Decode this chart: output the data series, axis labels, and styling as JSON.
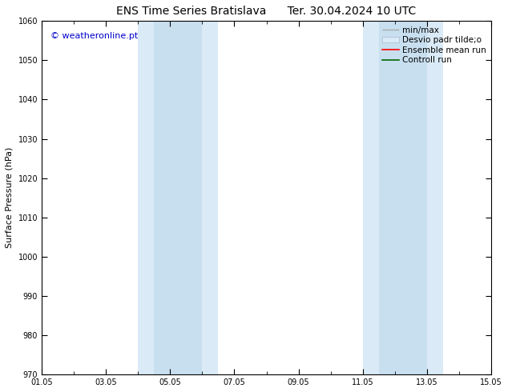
{
  "title": "ENS Time Series Bratislava",
  "title2": "Ter. 30.04.2024 10 UTC",
  "ylabel": "Surface Pressure (hPa)",
  "xlabel": "",
  "ylim": [
    970,
    1060
  ],
  "yticks": [
    970,
    980,
    990,
    1000,
    1010,
    1020,
    1030,
    1040,
    1050,
    1060
  ],
  "xtick_labels": [
    "01.05",
    "03.05",
    "05.05",
    "07.05",
    "09.05",
    "11.05",
    "13.05",
    "15.05"
  ],
  "xtick_positions": [
    0,
    2,
    4,
    6,
    8,
    10,
    12,
    14
  ],
  "xlim": [
    0,
    14
  ],
  "shaded_regions": [
    {
      "start": 3.0,
      "end": 3.5,
      "color": "#daeaf7"
    },
    {
      "start": 3.5,
      "end": 5.0,
      "color": "#daeaf7"
    },
    {
      "start": 5.0,
      "end": 5.5,
      "color": "#daeaf7"
    },
    {
      "start": 10.0,
      "end": 10.5,
      "color": "#daeaf7"
    },
    {
      "start": 10.5,
      "end": 12.0,
      "color": "#daeaf7"
    },
    {
      "start": 12.0,
      "end": 12.5,
      "color": "#daeaf7"
    }
  ],
  "shaded_merged": [
    {
      "start": 3.0,
      "end": 5.5,
      "color": "#daeaf7"
    },
    {
      "start": 10.0,
      "end": 12.5,
      "color": "#daeaf7"
    }
  ],
  "shaded_inner": [
    {
      "start": 3.5,
      "end": 5.0,
      "color": "#c8dff0"
    },
    {
      "start": 10.5,
      "end": 12.0,
      "color": "#c8dff0"
    }
  ],
  "watermark_text": "© weatheronline.pt",
  "watermark_color": "#0000cc",
  "background_color": "#ffffff",
  "title_fontsize": 10,
  "tick_fontsize": 7,
  "label_fontsize": 8,
  "watermark_fontsize": 8,
  "legend_fontsize": 7.5,
  "legend_label_minmax": "min/max",
  "legend_label_desvio": "Desvio padr tilde;o",
  "legend_label_ensemble": "Ensemble mean run",
  "legend_label_controll": "Controll run"
}
